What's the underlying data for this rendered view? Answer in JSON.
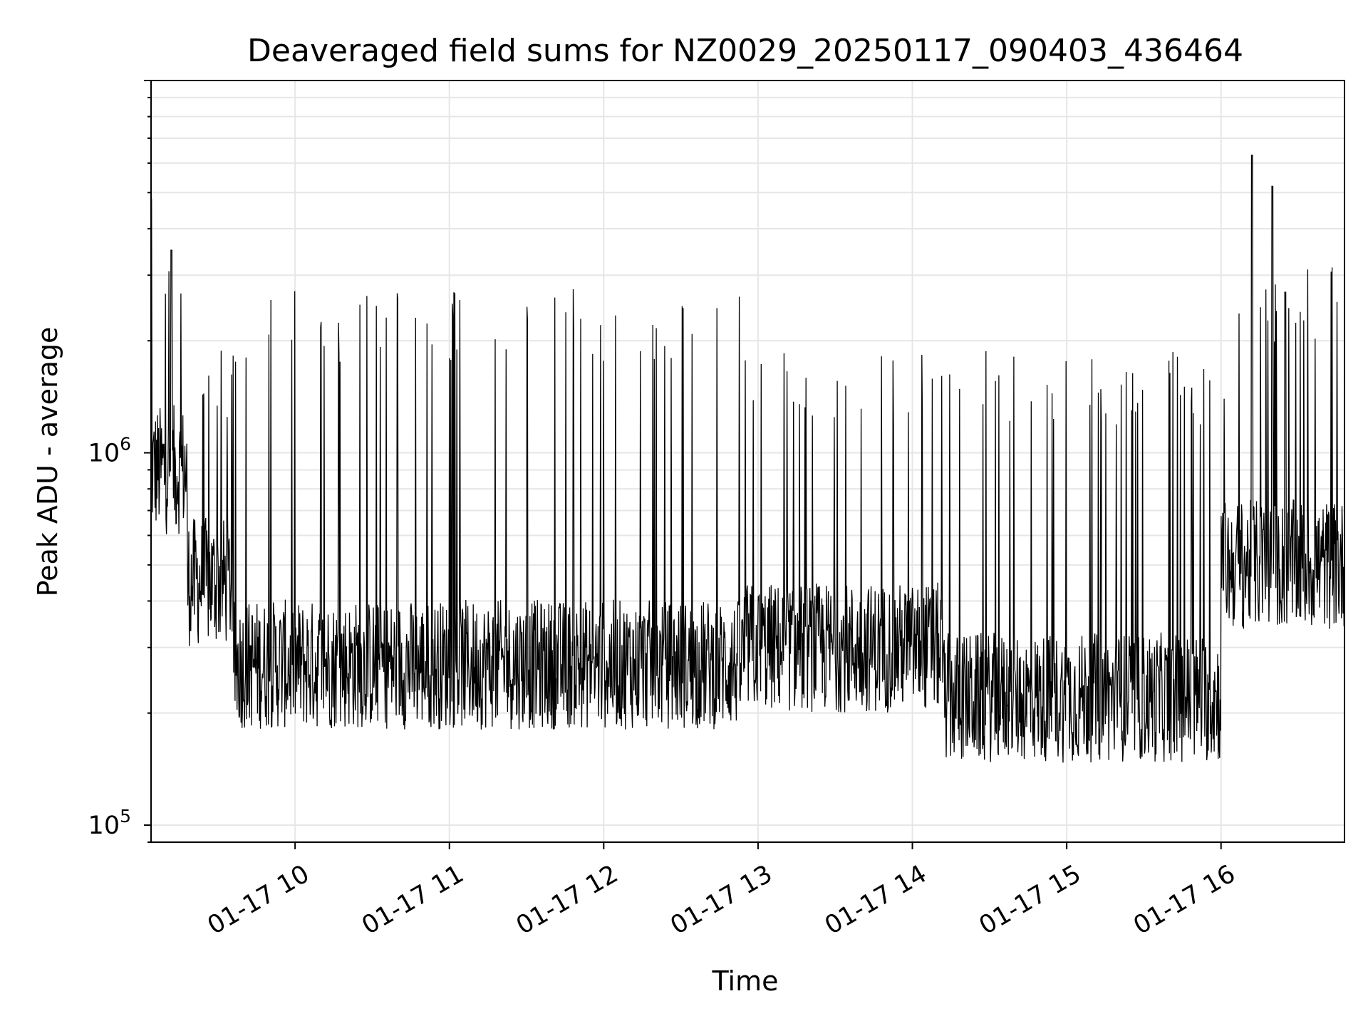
{
  "chart_data": {
    "type": "line",
    "title": "Deaveraged field sums for NZ0029_20250117_090403_436464",
    "xlabel": "Time",
    "ylabel": "Peak ADU - average",
    "x_scale": "time",
    "y_scale": "log",
    "xlim": [
      "01-17 09:04",
      "01-17 16:48"
    ],
    "ylim": [
      90000,
      10000000
    ],
    "grid": true,
    "legend": "none",
    "x_ticks": [
      {
        "value": "01-17 10:00",
        "label": "01-17 10"
      },
      {
        "value": "01-17 11:00",
        "label": "01-17 11"
      },
      {
        "value": "01-17 12:00",
        "label": "01-17 12"
      },
      {
        "value": "01-17 13:00",
        "label": "01-17 13"
      },
      {
        "value": "01-17 14:00",
        "label": "01-17 14"
      },
      {
        "value": "01-17 15:00",
        "label": "01-17 15"
      },
      {
        "value": "01-17 16:00",
        "label": "01-17 16"
      }
    ],
    "y_ticks": [
      {
        "value": 100000,
        "base": "10",
        "exp": "5"
      },
      {
        "value": 1000000,
        "base": "10",
        "exp": "6"
      }
    ],
    "series": [
      {
        "color": "#000000",
        "x": [
          "01-17 09:04",
          "01-17 09:05",
          "01-17 09:06",
          "01-17 09:07",
          "01-17 09:08",
          "01-17 09:10",
          "01-17 09:12",
          "01-17 09:14",
          "01-17 09:16",
          "01-17 09:18",
          "01-17 09:20",
          "01-17 09:23",
          "01-17 09:26",
          "01-17 09:29",
          "01-17 09:32",
          "01-17 09:35",
          "01-17 09:38",
          "01-17 09:41",
          "01-17 09:44",
          "01-17 09:47",
          "01-17 09:50",
          "01-17 09:53",
          "01-17 09:56",
          "01-17 10:00",
          "01-17 10:05",
          "01-17 10:10",
          "01-17 10:15",
          "01-17 10:20",
          "01-17 10:25",
          "01-17 10:30",
          "01-17 10:35",
          "01-17 10:40",
          "01-17 10:45",
          "01-17 10:50",
          "01-17 10:55",
          "01-17 11:00",
          "01-17 11:05",
          "01-17 11:10",
          "01-17 11:15",
          "01-17 11:20",
          "01-17 11:25",
          "01-17 11:30",
          "01-17 11:35",
          "01-17 11:40",
          "01-17 11:45",
          "01-17 11:50",
          "01-17 11:55",
          "01-17 12:00",
          "01-17 12:05",
          "01-17 12:10",
          "01-17 12:15",
          "01-17 12:20",
          "01-17 12:25",
          "01-17 12:30",
          "01-17 12:35",
          "01-17 12:40",
          "01-17 12:45",
          "01-17 12:50",
          "01-17 12:55",
          "01-17 13:00",
          "01-17 13:05",
          "01-17 13:10",
          "01-17 13:15",
          "01-17 13:20",
          "01-17 13:25",
          "01-17 13:30",
          "01-17 13:35",
          "01-17 13:40",
          "01-17 13:45",
          "01-17 13:50",
          "01-17 13:55",
          "01-17 14:00",
          "01-17 14:05",
          "01-17 14:10",
          "01-17 14:15",
          "01-17 14:20",
          "01-17 14:25",
          "01-17 14:30",
          "01-17 14:35",
          "01-17 14:40",
          "01-17 14:45",
          "01-17 14:50",
          "01-17 14:55",
          "01-17 15:00",
          "01-17 15:05",
          "01-17 15:10",
          "01-17 15:15",
          "01-17 15:20",
          "01-17 15:25",
          "01-17 15:30",
          "01-17 15:35",
          "01-17 15:40",
          "01-17 15:45",
          "01-17 15:50",
          "01-17 15:55",
          "01-17 16:00",
          "01-17 16:05",
          "01-17 16:08",
          "01-17 16:10",
          "01-17 16:12",
          "01-17 16:15",
          "01-17 16:18",
          "01-17 16:20",
          "01-17 16:23",
          "01-17 16:25",
          "01-17 16:28",
          "01-17 16:30",
          "01-17 16:33",
          "01-17 16:35",
          "01-17 16:38",
          "01-17 16:40",
          "01-17 16:42",
          "01-17 16:44",
          "01-17 16:46",
          "01-17 16:48"
        ],
        "y": [
          4800000,
          600000,
          1500000,
          700000,
          2000000,
          900000,
          3500000,
          600000,
          1200000,
          500000,
          800000,
          400000,
          600000,
          350000,
          450000,
          300000,
          330000,
          280000,
          400000,
          300000,
          260000,
          1200000,
          280000,
          330000,
          280000,
          300000,
          1400000,
          290000,
          300000,
          1600000,
          270000,
          280000,
          2200000,
          260000,
          280000,
          250000,
          1800000,
          280000,
          260000,
          2200000,
          270000,
          250000,
          2200000,
          280000,
          240000,
          2000000,
          260000,
          250000,
          2300000,
          260000,
          270000,
          2200000,
          250000,
          260000,
          2100000,
          280000,
          350000,
          2300000,
          500000,
          700000,
          300000,
          250000,
          1500000,
          350000,
          280000,
          1700000,
          300000,
          250000,
          700000,
          1500000,
          400000,
          1000000,
          300000,
          250000,
          600000,
          200000,
          250000,
          300000,
          220000,
          1300000,
          230000,
          200000,
          1400000,
          220000,
          250000,
          1500000,
          200000,
          230000,
          1400000,
          180000,
          200000,
          1200000,
          190000,
          200000,
          1000000,
          300000,
          600000,
          800000,
          1200000,
          6300000,
          1000000,
          600000,
          5200000,
          800000,
          2700000,
          700000,
          1500000,
          600000,
          1200000,
          500000,
          1300000,
          600000,
          1000000,
          2500000,
          500000
        ],
        "values_are_envelope_estimates": true
      }
    ]
  }
}
